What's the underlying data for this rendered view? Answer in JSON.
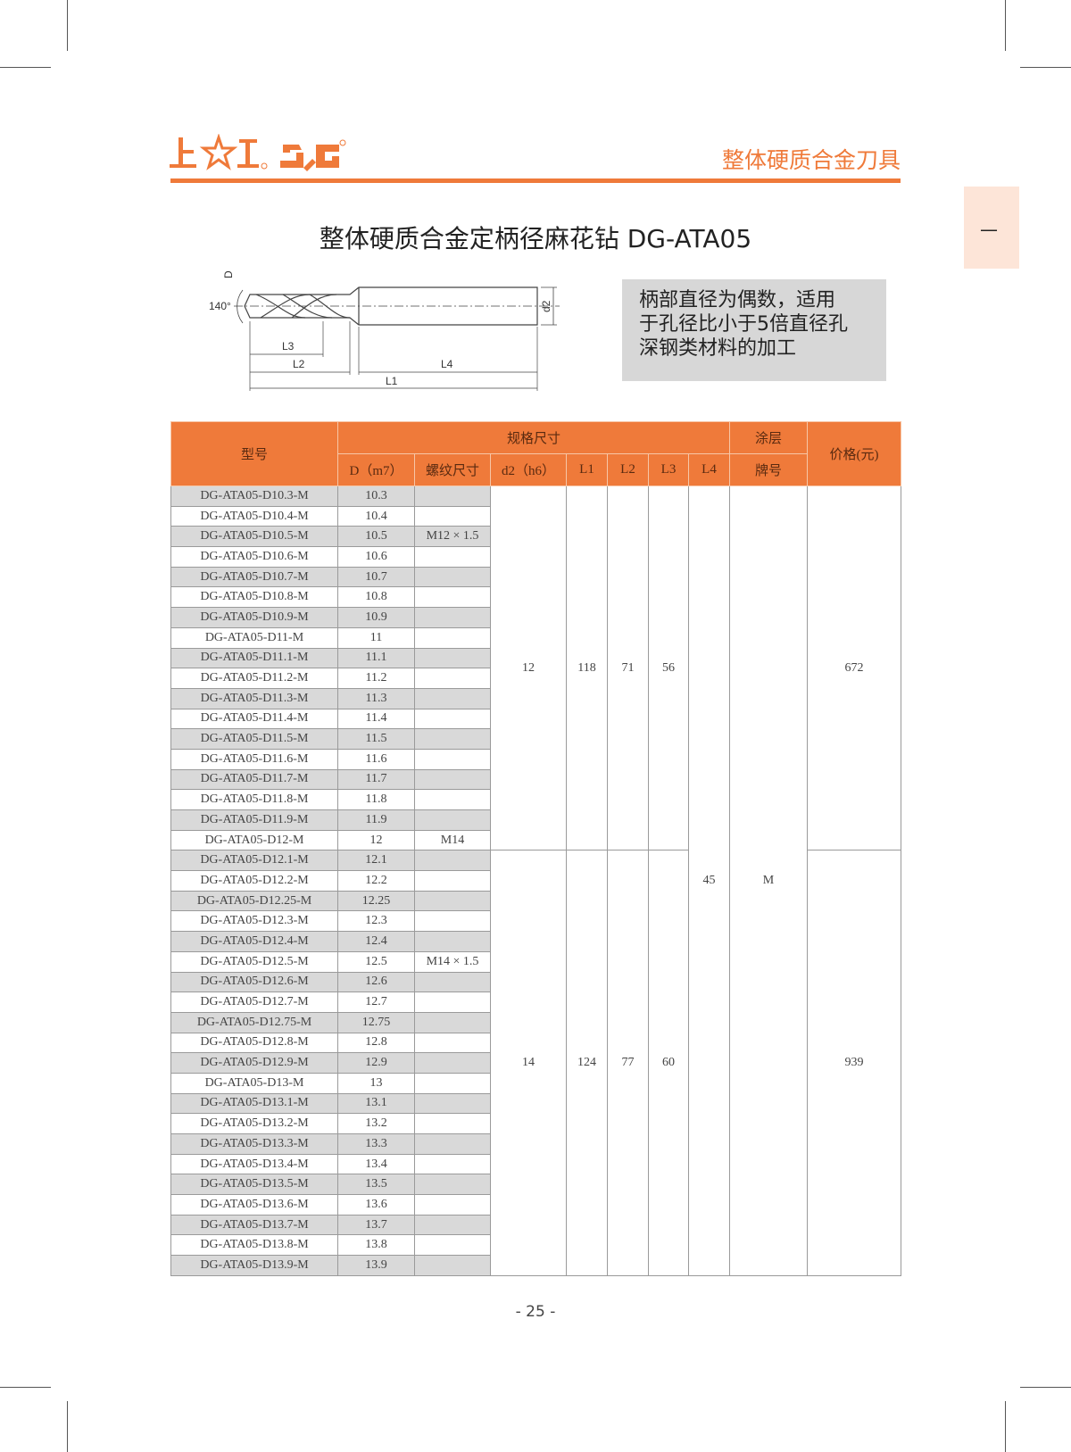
{
  "header": {
    "logo_text": "上☆工 SG",
    "category": "整体硬质合金刀具",
    "side_tab": "—",
    "accent_color": "#ef7a3a"
  },
  "title": "整体硬质合金定柄径麻花钻 DG-ATA05",
  "diagram": {
    "labels": {
      "D": "D",
      "angle": "140°",
      "d2": "d2",
      "L1": "L1",
      "L2": "L2",
      "L3": "L3",
      "L4": "L4"
    }
  },
  "note": {
    "lines": [
      "柄部直径为偶数，适用",
      "于孔径比小于5倍直径孔",
      "深钢类材料的加工"
    ]
  },
  "table": {
    "headers": {
      "model": "型号",
      "spec": "规格尺寸",
      "coating_top": "涂层",
      "coating_bottom": "牌号",
      "price": "价格(元)",
      "D": "D（m7）",
      "thread": "螺纹尺寸",
      "d2": "d2（h6）",
      "L1": "L1",
      "L2": "L2",
      "L3": "L3",
      "L4": "L4"
    },
    "shared": {
      "L4": "45",
      "coating": "M"
    },
    "groups": [
      {
        "d2": "12",
        "L1": "118",
        "L2": "71",
        "L3": "56",
        "price": "672",
        "rows": [
          [
            "DG-ATA05-D10.3-M",
            "10.3",
            ""
          ],
          [
            "DG-ATA05-D10.4-M",
            "10.4",
            ""
          ],
          [
            "DG-ATA05-D10.5-M",
            "10.5",
            "M12 × 1.5"
          ],
          [
            "DG-ATA05-D10.6-M",
            "10.6",
            ""
          ],
          [
            "DG-ATA05-D10.7-M",
            "10.7",
            ""
          ],
          [
            "DG-ATA05-D10.8-M",
            "10.8",
            ""
          ],
          [
            "DG-ATA05-D10.9-M",
            "10.9",
            ""
          ],
          [
            "DG-ATA05-D11-M",
            "11",
            ""
          ],
          [
            "DG-ATA05-D11.1-M",
            "11.1",
            ""
          ],
          [
            "DG-ATA05-D11.2-M",
            "11.2",
            ""
          ],
          [
            "DG-ATA05-D11.3-M",
            "11.3",
            ""
          ],
          [
            "DG-ATA05-D11.4-M",
            "11.4",
            ""
          ],
          [
            "DG-ATA05-D11.5-M",
            "11.5",
            ""
          ],
          [
            "DG-ATA05-D11.6-M",
            "11.6",
            ""
          ],
          [
            "DG-ATA05-D11.7-M",
            "11.7",
            ""
          ],
          [
            "DG-ATA05-D11.8-M",
            "11.8",
            ""
          ],
          [
            "DG-ATA05-D11.9-M",
            "11.9",
            ""
          ],
          [
            "DG-ATA05-D12-M",
            "12",
            "M14"
          ]
        ]
      },
      {
        "d2": "14",
        "L1": "124",
        "L2": "77",
        "L3": "60",
        "price": "939",
        "rows": [
          [
            "DG-ATA05-D12.1-M",
            "12.1",
            ""
          ],
          [
            "DG-ATA05-D12.2-M",
            "12.2",
            ""
          ],
          [
            "DG-ATA05-D12.25-M",
            "12.25",
            ""
          ],
          [
            "DG-ATA05-D12.3-M",
            "12.3",
            ""
          ],
          [
            "DG-ATA05-D12.4-M",
            "12.4",
            ""
          ],
          [
            "DG-ATA05-D12.5-M",
            "12.5",
            "M14 × 1.5"
          ],
          [
            "DG-ATA05-D12.6-M",
            "12.6",
            ""
          ],
          [
            "DG-ATA05-D12.7-M",
            "12.7",
            ""
          ],
          [
            "DG-ATA05-D12.75-M",
            "12.75",
            ""
          ],
          [
            "DG-ATA05-D12.8-M",
            "12.8",
            ""
          ],
          [
            "DG-ATA05-D12.9-M",
            "12.9",
            ""
          ],
          [
            "DG-ATA05-D13-M",
            "13",
            ""
          ],
          [
            "DG-ATA05-D13.1-M",
            "13.1",
            ""
          ],
          [
            "DG-ATA05-D13.2-M",
            "13.2",
            ""
          ],
          [
            "DG-ATA05-D13.3-M",
            "13.3",
            ""
          ],
          [
            "DG-ATA05-D13.4-M",
            "13.4",
            ""
          ],
          [
            "DG-ATA05-D13.5-M",
            "13.5",
            ""
          ],
          [
            "DG-ATA05-D13.6-M",
            "13.6",
            ""
          ],
          [
            "DG-ATA05-D13.7-M",
            "13.7",
            ""
          ],
          [
            "DG-ATA05-D13.8-M",
            "13.8",
            ""
          ],
          [
            "DG-ATA05-D13.9-M",
            "13.9",
            ""
          ]
        ]
      }
    ]
  },
  "page_number": "- 25 -"
}
